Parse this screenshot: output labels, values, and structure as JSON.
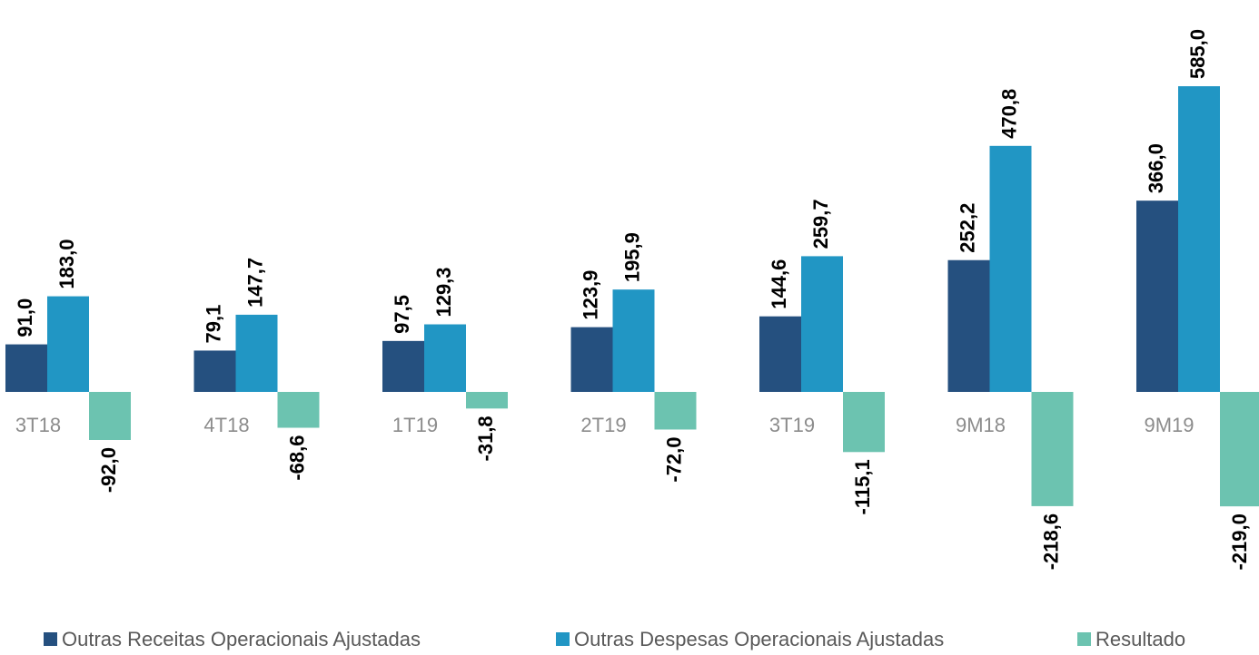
{
  "chart_data": {
    "type": "bar",
    "categories": [
      "3T18",
      "4T18",
      "1T19",
      "2T19",
      "3T19",
      "9M18",
      "9M19"
    ],
    "series": [
      {
        "name": "Outras Receitas Operacionais Ajustadas",
        "color": "#25507f",
        "values": [
          91.0,
          79.1,
          97.5,
          123.9,
          144.6,
          252.2,
          366.0
        ],
        "value_labels": [
          "91,0",
          "79,1",
          "97,5",
          "123,9",
          "144,6",
          "252,2",
          "366,0"
        ]
      },
      {
        "name": "Outras Despesas Operacionais Ajustadas",
        "color": "#2196c4",
        "values": [
          183.0,
          147.7,
          129.3,
          195.9,
          259.7,
          470.8,
          585.0
        ],
        "value_labels": [
          "183,0",
          "147,7",
          "129,3",
          "195,9",
          "259,7",
          "470,8",
          "585,0"
        ]
      },
      {
        "name": "Resultado",
        "color": "#6cc3b0",
        "values": [
          -92.0,
          -68.6,
          -31.8,
          -72.0,
          -115.1,
          -218.6,
          -219.0
        ],
        "value_labels": [
          "-92,0",
          "-68,6",
          "-31,8",
          "-72,0",
          "-115,1",
          "-218,6",
          "-219,0"
        ]
      }
    ],
    "legend": "bottom"
  }
}
